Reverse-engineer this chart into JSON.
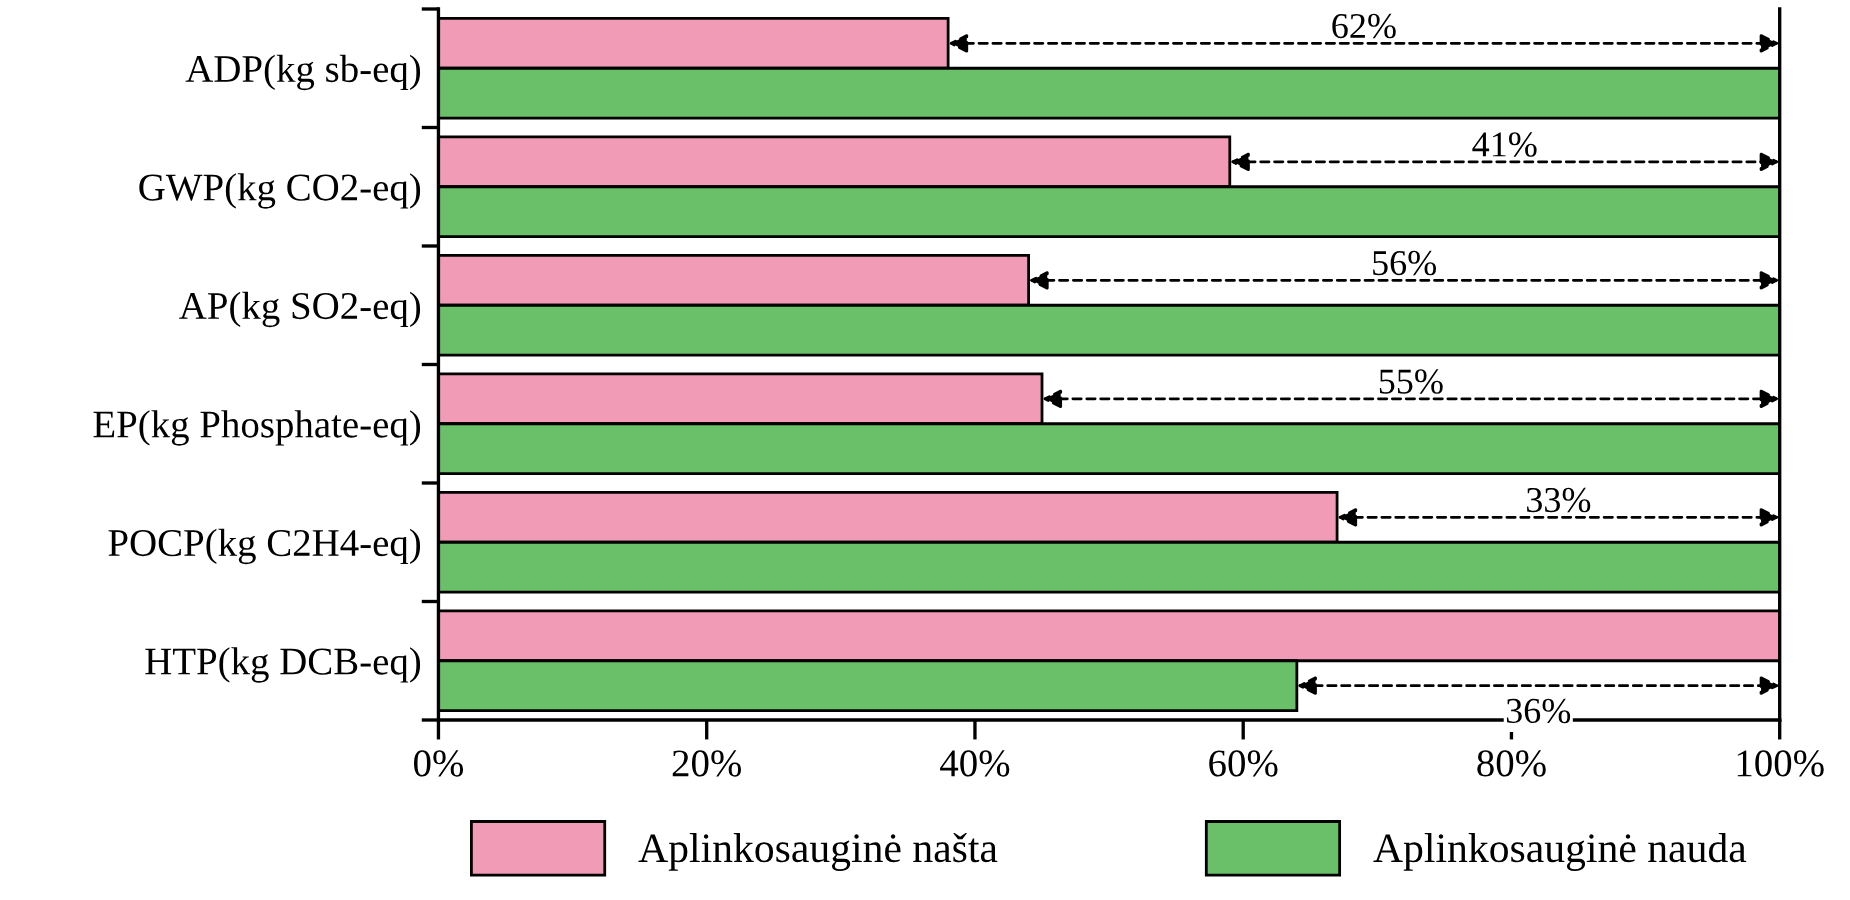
{
  "chart_data": {
    "type": "bar",
    "orientation": "horizontal",
    "categories": [
      "ADP(kg sb-eq)",
      "GWP(kg CO2-eq)",
      "AP(kg SO2-eq)",
      "EP(kg Phosphate-eq)",
      "POCP(kg C2H4-eq)",
      "HTP(kg DCB-eq)"
    ],
    "series": [
      {
        "name": "Aplinkosauginė našta",
        "color": "#f19bb6",
        "values": [
          38,
          59,
          44,
          45,
          67,
          100
        ]
      },
      {
        "name": "Aplinkosauginė nauda",
        "color": "#6abf69",
        "values": [
          100,
          100,
          100,
          100,
          100,
          64
        ]
      }
    ],
    "xlim": [
      0,
      100
    ],
    "xticks": [
      {
        "value": 0,
        "label": "0%"
      },
      {
        "value": 20,
        "label": "20%"
      },
      {
        "value": 40,
        "label": "40%"
      },
      {
        "value": 60,
        "label": "60%"
      },
      {
        "value": 80,
        "label": "80%"
      },
      {
        "value": 100,
        "label": "100%"
      }
    ],
    "grid": false,
    "legend": "bottom",
    "annotations": [
      "62%",
      "41%",
      "56%",
      "55%",
      "33%",
      "36%"
    ]
  }
}
